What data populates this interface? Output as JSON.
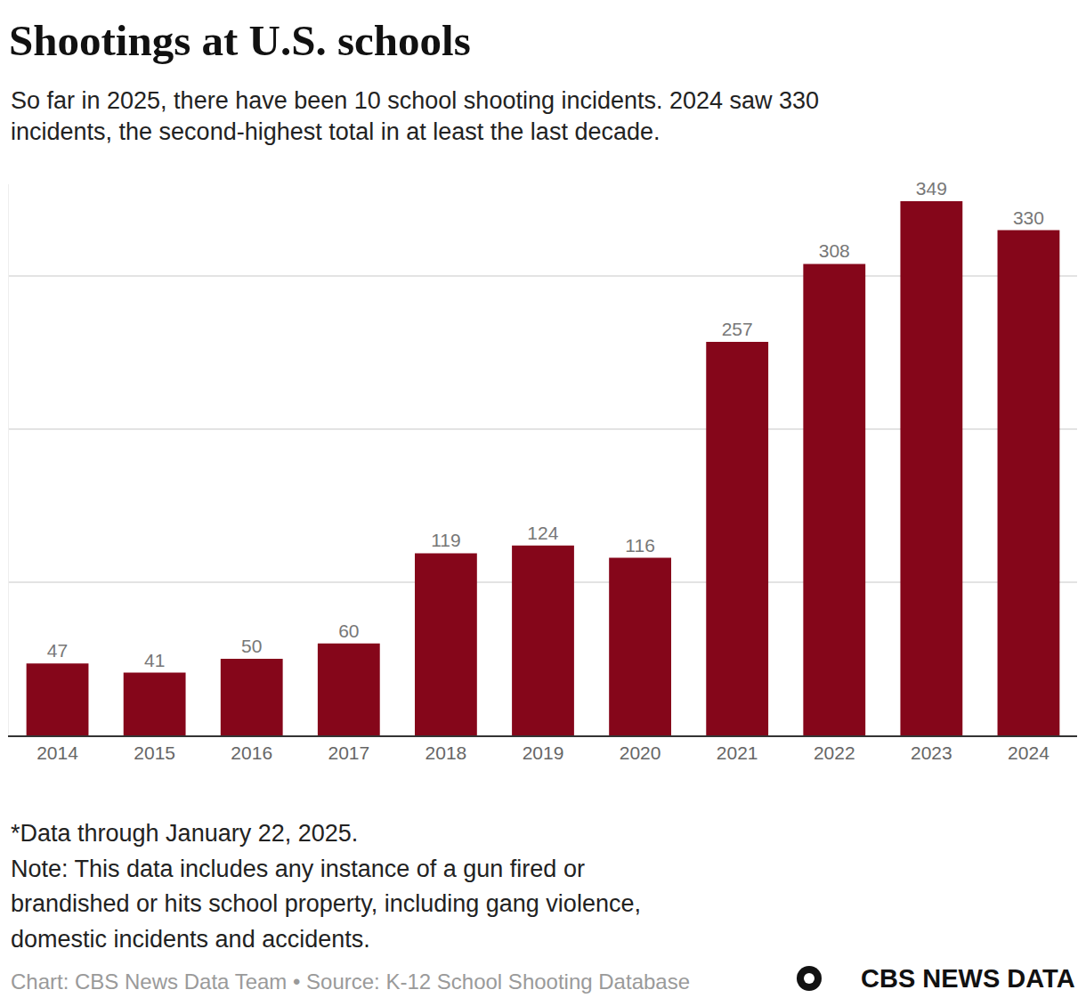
{
  "chart_data": {
    "type": "bar",
    "title": "Shootings at U.S. schools",
    "subtitle": [
      "So far in 2025, there have been 10 school shooting incidents. 2024 saw 330",
      "incidents, the second-highest total in at least the last decade."
    ],
    "categories": [
      "2014",
      "2015",
      "2016",
      "2017",
      "2018",
      "2019",
      "2020",
      "2021",
      "2022",
      "2023",
      "2024"
    ],
    "values": [
      47,
      41,
      50,
      60,
      119,
      124,
      116,
      257,
      308,
      349,
      330
    ],
    "color": "#85061a",
    "ylim": [
      0,
      360
    ],
    "yticks": [
      0,
      100,
      200,
      300
    ],
    "grid": true,
    "data_labels": true,
    "tick_labels": "x",
    "notes": [
      "*Data through January 22, 2025.",
      "Note: This data includes any instance of a gun fired or",
      "brandished or hits school property, including gang violence,",
      "domestic incidents and accidents."
    ],
    "source": "Chart: CBS News Data Team • Source: K-12 School Shooting Database",
    "logo": "CBS NEWS DATA"
  }
}
